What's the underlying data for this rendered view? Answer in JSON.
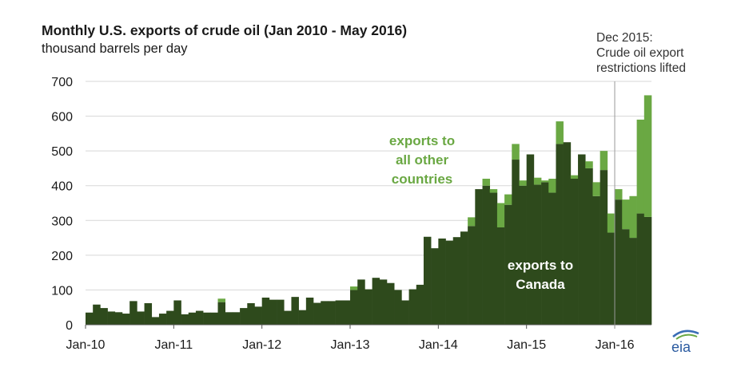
{
  "chart_data": {
    "type": "bar",
    "stacked": true,
    "title": "Monthly U.S. exports of crude oil (Jan 2010 - May 2016)",
    "subtitle": "thousand barrels per day",
    "ylim": [
      0,
      700
    ],
    "yticks": [
      0,
      100,
      200,
      300,
      400,
      500,
      600,
      700
    ],
    "grid": true,
    "xticks": [
      "Jan-10",
      "Jan-11",
      "Jan-12",
      "Jan-13",
      "Jan-14",
      "Jan-15",
      "Jan-16"
    ],
    "months": 77,
    "series": [
      {
        "name": "exports to Canada",
        "label_lines": [
          "exports to",
          "Canada"
        ],
        "color": "#2e4a1c",
        "values": [
          35,
          58,
          48,
          38,
          36,
          32,
          68,
          38,
          62,
          22,
          32,
          40,
          70,
          30,
          35,
          40,
          35,
          35,
          65,
          36,
          36,
          48,
          62,
          52,
          78,
          72,
          72,
          40,
          80,
          42,
          78,
          63,
          68,
          68,
          70,
          70,
          100,
          130,
          102,
          135,
          130,
          120,
          100,
          70,
          102,
          115,
          253,
          220,
          248,
          242,
          252,
          268,
          284,
          390,
          400,
          380,
          280,
          345,
          475,
          400,
          490,
          403,
          410,
          380,
          520,
          525,
          420,
          490,
          450,
          370,
          445,
          265,
          360,
          275,
          250,
          320,
          310
        ]
      },
      {
        "name": "exports to all other countries",
        "label_lines": [
          "exports to",
          "all other",
          "countries"
        ],
        "color": "#6aa843",
        "values": [
          0,
          0,
          0,
          0,
          0,
          0,
          0,
          0,
          0,
          0,
          0,
          0,
          0,
          0,
          0,
          0,
          0,
          0,
          10,
          0,
          0,
          0,
          0,
          0,
          0,
          0,
          0,
          0,
          0,
          0,
          0,
          0,
          0,
          0,
          0,
          0,
          10,
          0,
          0,
          0,
          0,
          0,
          0,
          0,
          0,
          0,
          0,
          0,
          0,
          0,
          0,
          0,
          25,
          0,
          20,
          10,
          70,
          30,
          45,
          15,
          0,
          20,
          5,
          40,
          65,
          0,
          10,
          0,
          20,
          40,
          55,
          55,
          30,
          85,
          120,
          270,
          350
        ]
      }
    ],
    "annotation": [
      "Dec 2015:",
      "Crude oil export",
      "restrictions lifted"
    ],
    "annotation_month_index": 71
  }
}
